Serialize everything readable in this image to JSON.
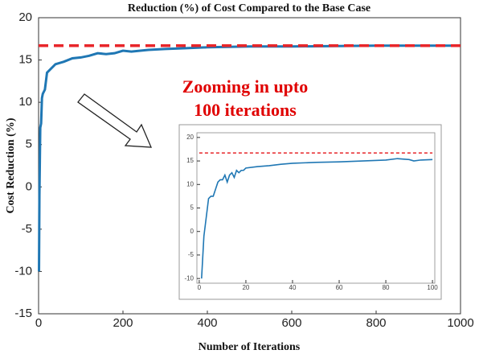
{
  "chart_data": [
    {
      "type": "line",
      "title": "Reduction (%) of Cost Compared to the Base Case",
      "x_label": "Number of Iterations",
      "y_label": "Cost Reduction (%)",
      "annotation": [
        "Zooming in upto",
        "100 iterations"
      ],
      "xlim": [
        0,
        1000
      ],
      "ylim": [
        -15,
        20
      ],
      "xticks": [
        0,
        200,
        400,
        600,
        800,
        1000
      ],
      "yticks": [
        -15,
        -10,
        -5,
        0,
        5,
        10,
        15,
        20
      ],
      "series": [
        {
          "color": "#1f77b4",
          "dashed": false,
          "x": [
            1,
            2,
            3,
            4,
            6,
            8,
            10,
            15,
            20,
            30,
            40,
            60,
            80,
            100,
            120,
            140,
            160,
            180,
            200,
            220,
            260,
            300,
            350,
            400,
            500,
            600,
            800,
            1000
          ],
          "values": [
            -10,
            -1,
            3,
            7,
            7.5,
            10.5,
            11,
            11.5,
            13.5,
            14,
            14.5,
            14.8,
            15.2,
            15.3,
            15.5,
            15.8,
            15.7,
            15.8,
            16.1,
            16,
            16.2,
            16.3,
            16.4,
            16.5,
            16.6,
            16.6,
            16.7,
            16.7
          ]
        },
        {
          "color": "#e8262a",
          "dashed": true,
          "x": [
            0,
            1000
          ],
          "values": [
            16.7,
            16.7
          ]
        }
      ]
    },
    {
      "type": "line",
      "xlim": [
        -1,
        101
      ],
      "ylim": [
        -11,
        21
      ],
      "xticks": [
        0,
        20,
        40,
        60,
        80,
        100
      ],
      "yticks": [
        -10,
        -5,
        0,
        5,
        10,
        15,
        20
      ],
      "series": [
        {
          "color": "#1f77b4",
          "dashed": false,
          "x": [
            1,
            2,
            3,
            4,
            5,
            6,
            7,
            8,
            9,
            10,
            11,
            12,
            13,
            14,
            15,
            16,
            17,
            18,
            19,
            20,
            25,
            30,
            35,
            40,
            50,
            60,
            70,
            80,
            85,
            90,
            92,
            95,
            100
          ],
          "values": [
            -10,
            -1,
            3,
            7,
            7.5,
            7.5,
            9,
            10.5,
            11,
            11,
            12,
            10.5,
            12,
            12.5,
            11.5,
            13,
            12.5,
            13,
            13,
            13.5,
            13.8,
            14,
            14.3,
            14.5,
            14.7,
            14.8,
            15,
            15.2,
            15.5,
            15.3,
            15,
            15.2,
            15.3
          ]
        },
        {
          "color": "#e8262a",
          "dashed": true,
          "x": [
            0,
            100
          ],
          "values": [
            16.7,
            16.7
          ]
        }
      ]
    }
  ]
}
